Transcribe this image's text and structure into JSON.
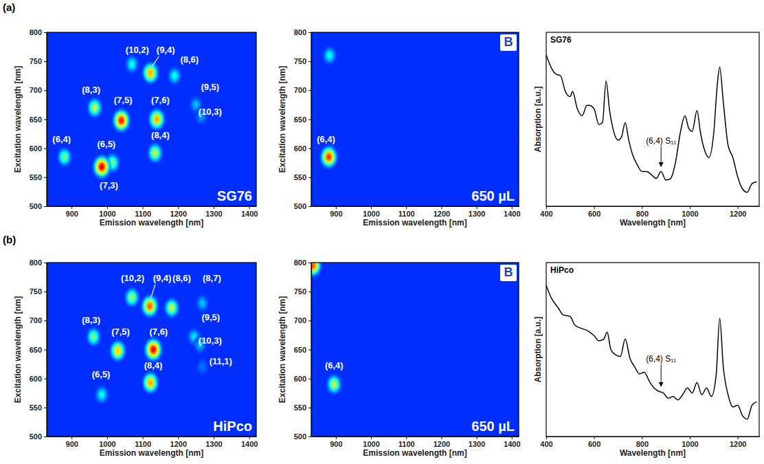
{
  "figure": {
    "panel_labels": [
      "(a)",
      "(b)"
    ]
  },
  "chart_data": [
    {
      "type": "heatmap",
      "title": "SG76",
      "xlabel": "Emission wavelength [nm]",
      "ylabel": "Excitation wavelength [nm]",
      "xlim": [
        830,
        1420
      ],
      "ylim": [
        500,
        800
      ],
      "xticks": [
        900,
        1000,
        1100,
        1200,
        1300,
        1400
      ],
      "yticks": [
        500,
        550,
        600,
        650,
        700,
        750,
        800
      ],
      "zlim": [
        0,
        1
      ],
      "peaks": [
        {
          "x": 880,
          "y": 585,
          "intensity": 0.45
        },
        {
          "x": 1015,
          "y": 575,
          "intensity": 0.45
        },
        {
          "x": 985,
          "y": 568,
          "intensity": 1.0
        },
        {
          "x": 965,
          "y": 670,
          "intensity": 0.55
        },
        {
          "x": 1040,
          "y": 648,
          "intensity": 0.95
        },
        {
          "x": 1140,
          "y": 650,
          "intensity": 0.75
        },
        {
          "x": 1135,
          "y": 592,
          "intensity": 0.55
        },
        {
          "x": 1122,
          "y": 730,
          "intensity": 0.75
        },
        {
          "x": 1070,
          "y": 745,
          "intensity": 0.3
        },
        {
          "x": 1190,
          "y": 725,
          "intensity": 0.3
        },
        {
          "x": 1250,
          "y": 675,
          "intensity": 0.2
        },
        {
          "x": 1265,
          "y": 655,
          "intensity": 0.15
        }
      ],
      "annotations": [
        {
          "text": "(10,2)",
          "x": 1085,
          "y": 768
        },
        {
          "text": "(9,4)",
          "x": 1165,
          "y": 768,
          "arrow": [
            1128,
            742
          ]
        },
        {
          "text": "(8,6)",
          "x": 1232,
          "y": 752
        },
        {
          "text": "(8,3)",
          "x": 955,
          "y": 700
        },
        {
          "text": "(7,5)",
          "x": 1045,
          "y": 682
        },
        {
          "text": "(7,6)",
          "x": 1150,
          "y": 682
        },
        {
          "text": "(9,5)",
          "x": 1290,
          "y": 705
        },
        {
          "text": "(10,3)",
          "x": 1290,
          "y": 662
        },
        {
          "text": "(6,4)",
          "x": 872,
          "y": 614
        },
        {
          "text": "(6,5)",
          "x": 998,
          "y": 606
        },
        {
          "text": "(7,3)",
          "x": 1005,
          "y": 535
        },
        {
          "text": "(8,4)",
          "x": 1150,
          "y": 622
        }
      ]
    },
    {
      "type": "heatmap",
      "title": "650 µL",
      "panel_letter": "B",
      "xlabel": "Emission wavelength [nm]",
      "ylabel": "Excitation wavelength [nm]",
      "xlim": [
        830,
        1420
      ],
      "ylim": [
        500,
        800
      ],
      "xticks": [
        900,
        1000,
        1100,
        1200,
        1300,
        1400
      ],
      "yticks": [
        500,
        550,
        600,
        650,
        700,
        750,
        800
      ],
      "zlim": [
        0,
        1
      ],
      "peaks": [
        {
          "x": 880,
          "y": 585,
          "intensity": 0.9
        },
        {
          "x": 882,
          "y": 760,
          "intensity": 0.3
        }
      ],
      "annotations": [
        {
          "text": "(6,4)",
          "x": 872,
          "y": 614
        }
      ]
    },
    {
      "type": "line",
      "title": "SG76",
      "xlabel": "Wavelength [nm]",
      "ylabel": "Absorption [a.u.]",
      "xlim": [
        400,
        1290
      ],
      "ylim": [
        0,
        1
      ],
      "xticks": [
        400,
        600,
        800,
        1000,
        1200
      ],
      "tick_labels": "x",
      "color": "#000000",
      "x": [
        400,
        420,
        440,
        460,
        480,
        500,
        510,
        530,
        550,
        570,
        580,
        600,
        620,
        635,
        650,
        665,
        680,
        700,
        715,
        730,
        745,
        760,
        780,
        800,
        820,
        840,
        860,
        880,
        900,
        920,
        940,
        960,
        980,
        995,
        1010,
        1030,
        1045,
        1060,
        1080,
        1100,
        1115,
        1125,
        1140,
        1160,
        1180,
        1200,
        1220,
        1240,
        1260,
        1280
      ],
      "values": [
        0.87,
        0.8,
        0.76,
        0.75,
        0.66,
        0.63,
        0.66,
        0.56,
        0.52,
        0.58,
        0.58,
        0.56,
        0.47,
        0.48,
        0.72,
        0.55,
        0.44,
        0.38,
        0.4,
        0.48,
        0.38,
        0.3,
        0.24,
        0.2,
        0.2,
        0.18,
        0.16,
        0.2,
        0.15,
        0.16,
        0.25,
        0.42,
        0.52,
        0.45,
        0.43,
        0.55,
        0.42,
        0.33,
        0.28,
        0.42,
        0.7,
        0.8,
        0.6,
        0.35,
        0.28,
        0.17,
        0.1,
        0.08,
        0.13,
        0.14
      ],
      "annotations": [
        {
          "text": "(6,4) S₁₁",
          "x": 880,
          "y": 0.36,
          "arrow": [
            880,
            0.22
          ]
        }
      ]
    },
    {
      "type": "heatmap",
      "title": "HiPco",
      "xlabel": "Emission wavelength [nm]",
      "ylabel": "Excitation wavelength [nm]",
      "xlim": [
        830,
        1420
      ],
      "ylim": [
        500,
        800
      ],
      "xticks": [
        900,
        1000,
        1100,
        1200,
        1300,
        1400
      ],
      "yticks": [
        500,
        550,
        600,
        650,
        700,
        750,
        800
      ],
      "zlim": [
        0,
        1
      ],
      "peaks": [
        {
          "x": 962,
          "y": 672,
          "intensity": 0.45
        },
        {
          "x": 985,
          "y": 572,
          "intensity": 0.3
        },
        {
          "x": 1030,
          "y": 648,
          "intensity": 0.7
        },
        {
          "x": 1070,
          "y": 740,
          "intensity": 0.5
        },
        {
          "x": 1120,
          "y": 725,
          "intensity": 0.85
        },
        {
          "x": 1130,
          "y": 650,
          "intensity": 1.0
        },
        {
          "x": 1122,
          "y": 593,
          "intensity": 0.75
        },
        {
          "x": 1182,
          "y": 722,
          "intensity": 0.55
        },
        {
          "x": 1268,
          "y": 730,
          "intensity": 0.2
        },
        {
          "x": 1245,
          "y": 672,
          "intensity": 0.25
        },
        {
          "x": 1262,
          "y": 658,
          "intensity": 0.2
        },
        {
          "x": 1268,
          "y": 620,
          "intensity": 0.1
        }
      ],
      "annotations": [
        {
          "text": "(8,3)",
          "x": 955,
          "y": 700
        },
        {
          "text": "(7,5)",
          "x": 1038,
          "y": 680
        },
        {
          "text": "(10,2)",
          "x": 1072,
          "y": 772
        },
        {
          "text": "(9,4)",
          "x": 1155,
          "y": 772,
          "arrow": [
            1124,
            740
          ]
        },
        {
          "text": "(8,6)",
          "x": 1210,
          "y": 772
        },
        {
          "text": "(8,7)",
          "x": 1295,
          "y": 772
        },
        {
          "text": "(7,6)",
          "x": 1145,
          "y": 680
        },
        {
          "text": "(6,5)",
          "x": 983,
          "y": 606
        },
        {
          "text": "(8,4)",
          "x": 1130,
          "y": 622
        },
        {
          "text": "(9,5)",
          "x": 1292,
          "y": 705
        },
        {
          "text": "(10,3)",
          "x": 1290,
          "y": 664
        },
        {
          "text": "(11,1)",
          "x": 1320,
          "y": 628
        }
      ]
    },
    {
      "type": "heatmap",
      "title": "650 µL",
      "panel_letter": "B",
      "xlabel": "Emission wavelength [nm]",
      "ylabel": "Excitation wavelength [nm]",
      "xlim": [
        830,
        1420
      ],
      "ylim": [
        500,
        800
      ],
      "xticks": [
        900,
        1000,
        1100,
        1200,
        1300,
        1400
      ],
      "yticks": [
        500,
        550,
        600,
        650,
        700,
        750,
        800
      ],
      "zlim": [
        0,
        1
      ],
      "peaks": [
        {
          "x": 895,
          "y": 590,
          "intensity": 0.55
        },
        {
          "x": 835,
          "y": 795,
          "intensity": 0.85
        }
      ],
      "annotations": [
        {
          "text": "(6,4)",
          "x": 895,
          "y": 622
        }
      ]
    },
    {
      "type": "line",
      "title": "HiPco",
      "xlabel": "Wavelength [nm]",
      "ylabel": "Absorption [a.u.]",
      "xlim": [
        400,
        1290
      ],
      "ylim": [
        0,
        1
      ],
      "xticks": [
        400,
        600,
        800,
        1000,
        1200
      ],
      "tick_labels": "x",
      "color": "#000000",
      "x": [
        400,
        420,
        450,
        470,
        500,
        520,
        550,
        570,
        600,
        620,
        640,
        655,
        670,
        690,
        710,
        730,
        750,
        770,
        790,
        810,
        830,
        850,
        870,
        890,
        910,
        930,
        950,
        970,
        990,
        1010,
        1030,
        1050,
        1070,
        1090,
        1110,
        1125,
        1140,
        1160,
        1180,
        1200,
        1220,
        1240,
        1260,
        1280
      ],
      "values": [
        0.87,
        0.8,
        0.74,
        0.7,
        0.69,
        0.64,
        0.62,
        0.61,
        0.58,
        0.55,
        0.56,
        0.6,
        0.5,
        0.47,
        0.46,
        0.56,
        0.45,
        0.4,
        0.36,
        0.37,
        0.32,
        0.28,
        0.26,
        0.25,
        0.22,
        0.23,
        0.21,
        0.24,
        0.28,
        0.25,
        0.31,
        0.24,
        0.28,
        0.23,
        0.35,
        0.68,
        0.4,
        0.24,
        0.17,
        0.18,
        0.12,
        0.1,
        0.18,
        0.2
      ],
      "annotations": [
        {
          "text": "(6,4) S₁₁",
          "x": 880,
          "y": 0.43,
          "arrow": [
            880,
            0.28
          ]
        }
      ]
    }
  ]
}
